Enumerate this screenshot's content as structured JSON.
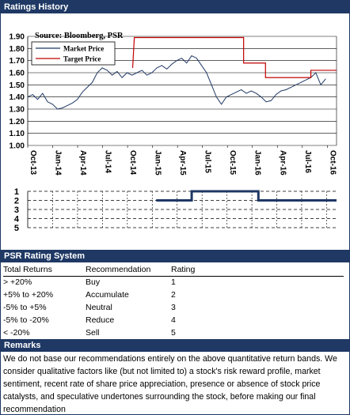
{
  "sections": {
    "ratings_history": "Ratings History",
    "psr_rating_system": "PSR Rating System",
    "remarks": "Remarks"
  },
  "chart_data": [
    {
      "type": "line",
      "annotation": "Source: Bloomberg, PSR",
      "ylim": [
        1.0,
        1.9
      ],
      "yticks": [
        "1.90",
        "1.80",
        "1.70",
        "1.60",
        "1.50",
        "1.40",
        "1.30",
        "1.20",
        "1.10",
        "1.00"
      ],
      "xticks": [
        "Oct-13",
        "Jan-14",
        "Apr-14",
        "Jul-14",
        "Oct-14",
        "Jan-15",
        "Apr-15",
        "Jul-15",
        "Oct-15",
        "Jan-16",
        "Apr-16",
        "Jul-16",
        "Oct-16"
      ],
      "legend_position": "top-left",
      "series": [
        {
          "name": "Market Price",
          "color": "#1f3864",
          "values": [
            1.4,
            1.42,
            1.38,
            1.43,
            1.36,
            1.34,
            1.3,
            1.31,
            1.33,
            1.35,
            1.38,
            1.44,
            1.48,
            1.52,
            1.6,
            1.64,
            1.62,
            1.58,
            1.61,
            1.56,
            1.6,
            1.58,
            1.6,
            1.62,
            1.58,
            1.6,
            1.64,
            1.66,
            1.63,
            1.67,
            1.7,
            1.72,
            1.68,
            1.74,
            1.72,
            1.66,
            1.6,
            1.5,
            1.4,
            1.34,
            1.4,
            1.42,
            1.44,
            1.46,
            1.43,
            1.45,
            1.43,
            1.4,
            1.36,
            1.37,
            1.42,
            1.45,
            1.46,
            1.48,
            1.5,
            1.52,
            1.54,
            1.56,
            1.6,
            1.5,
            1.55
          ]
        },
        {
          "name": "Target Price",
          "color": "#c00000",
          "step_points": [
            [
              19.2,
              1.64
            ],
            [
              19.5,
              1.89
            ],
            [
              39.5,
              1.89
            ],
            [
              39.5,
              1.68
            ],
            [
              43.5,
              1.68
            ],
            [
              43.5,
              1.56
            ],
            [
              51.8,
              1.56
            ],
            [
              51.8,
              1.62
            ],
            [
              56.5,
              1.62
            ]
          ]
        }
      ],
      "x_range": [
        0,
        56.5
      ]
    },
    {
      "type": "line",
      "ylim": [
        1,
        5
      ],
      "yticks": [
        "1",
        "2",
        "3",
        "4",
        "5"
      ],
      "series": [
        {
          "name": "Rating",
          "color": "#1f3864",
          "step_points": [
            [
              23.5,
              2
            ],
            [
              30,
              2
            ],
            [
              30,
              1
            ],
            [
              42.2,
              1
            ],
            [
              42.2,
              2
            ],
            [
              56.5,
              2
            ]
          ]
        }
      ],
      "x_range": [
        0,
        56.5
      ]
    }
  ],
  "psr_table": {
    "headers": [
      "Total Returns",
      "Recommendation",
      "Rating"
    ],
    "rows": [
      [
        "> +20%",
        "Buy",
        "1"
      ],
      [
        "+5% to +20%",
        "Accumulate",
        "2"
      ],
      [
        "-5% to +5%",
        "Neutral",
        "3"
      ],
      [
        "-5% to -20%",
        "Reduce",
        "4"
      ],
      [
        "< -20%",
        "Sell",
        "5"
      ]
    ]
  },
  "remarks_text": "We do not base our recommendations entirely on the  above quantitative return bands.  We consider qualitative factors like (but not limited to) a stock's risk reward profile, market sentiment, recent rate of share price appreciation, presence or absence of stock price catalysts, and speculative undertones surrounding the stock, before making our final recommendation"
}
